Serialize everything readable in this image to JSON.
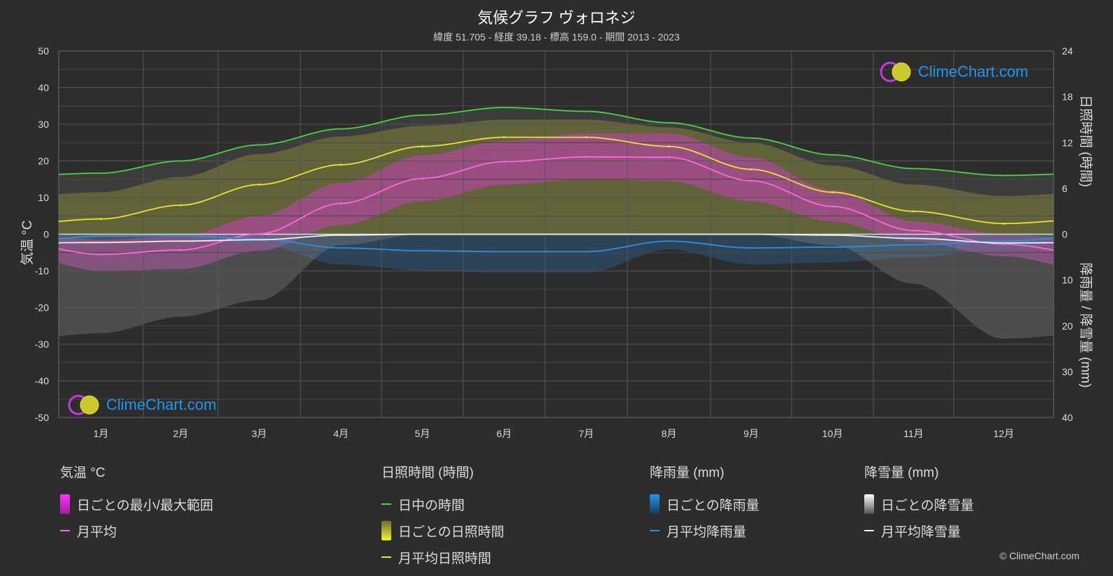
{
  "header": {
    "title": "気候グラフ ヴォロネジ",
    "subtitle": "緯度 51.705 - 経度 39.18 - 標高 159.0 - 期間 2013 - 2023"
  },
  "axes": {
    "left_title": "気温 °C",
    "right_top_title": "日照時間 (時間)",
    "right_bottom_title": "降雨量 / 降雪量 (mm)"
  },
  "legend": {
    "temp": {
      "head": "気温 °C",
      "items": [
        "日ごとの最小/最大範囲",
        "月平均"
      ]
    },
    "sun": {
      "head": "日照時間 (時間)",
      "items": [
        "日中の時間",
        "日ごとの日照時間",
        "月平均日照時間"
      ]
    },
    "rain": {
      "head": "降雨量 (mm)",
      "items": [
        "日ごとの降雨量",
        "月平均降雨量"
      ]
    },
    "snow": {
      "head": "降雪量 (mm)",
      "items": [
        "日ごとの降雪量",
        "月平均降雪量"
      ]
    }
  },
  "logo": {
    "text": "ClimeChart.com"
  },
  "copyright": "© ClimeChart.com",
  "colors": {
    "background": "#2d2d2d",
    "daylight": "#44d644",
    "sunshine_avg": "#e6e632",
    "sunshine_band": "#9a9a28",
    "temp_avg": "#ff66e0",
    "temp_band": "#c640b8",
    "rain_avg": "#2e8fe0",
    "rain_band": "#2a6ea8",
    "snow_avg": "#f0f0f0",
    "snow_band": "#8a8a8a",
    "grid": "#555555"
  },
  "chart_data": {
    "type": "area",
    "categories": [
      "1月",
      "2月",
      "3月",
      "4月",
      "5月",
      "6月",
      "7月",
      "8月",
      "9月",
      "10月",
      "11月",
      "12月"
    ],
    "temperature_axis": {
      "ticks": [
        50,
        40,
        30,
        20,
        10,
        0,
        -10,
        -20,
        -30,
        -40,
        -50
      ],
      "ylim": [
        -50,
        50
      ],
      "unit": "°C"
    },
    "sunshine_axis": {
      "ticks": [
        24,
        18,
        12,
        6,
        0
      ],
      "ylim": [
        0,
        24
      ],
      "unit": "時間"
    },
    "precipitation_axis": {
      "ticks": [
        0,
        10,
        20,
        30,
        40
      ],
      "ylim": [
        0,
        40
      ],
      "unit": "mm",
      "inverted": true
    },
    "grid": true,
    "series": [
      {
        "name": "日中の時間",
        "axis": "sunshine",
        "values": [
          8.0,
          9.6,
          11.7,
          13.8,
          15.6,
          16.6,
          16.1,
          14.6,
          12.6,
          10.4,
          8.6,
          7.7
        ]
      },
      {
        "name": "月平均日照時間",
        "axis": "sunshine",
        "values": [
          2.0,
          3.8,
          6.5,
          9.1,
          11.5,
          12.7,
          12.7,
          11.5,
          8.5,
          5.5,
          3.0,
          1.4
        ]
      },
      {
        "name": "日ごとの日照時間",
        "axis": "sunshine",
        "values": [
          5.5,
          7.5,
          10.5,
          12.8,
          14.2,
          15.0,
          15.0,
          14.0,
          12.0,
          9.0,
          6.5,
          5.0
        ]
      },
      {
        "name": "月平均",
        "axis": "temperature",
        "values": [
          -5.5,
          -4.3,
          0.1,
          8.4,
          15.2,
          19.8,
          21.1,
          21.0,
          14.6,
          7.6,
          1.0,
          -2.7
        ]
      },
      {
        "name": "日ごとの最小/最大範囲",
        "axis": "temperature",
        "min": [
          -10.0,
          -9.5,
          -4.5,
          2.5,
          9.0,
          13.5,
          15.0,
          14.5,
          9.0,
          3.5,
          -2.0,
          -6.0
        ],
        "max": [
          -1.5,
          -0.5,
          5.0,
          14.0,
          21.5,
          25.5,
          27.5,
          27.5,
          21.0,
          12.0,
          3.5,
          0.0
        ]
      },
      {
        "name": "月平均降雨量",
        "axis": "precipitation",
        "values": [
          0.4,
          0.3,
          1.0,
          3.0,
          3.6,
          3.8,
          3.8,
          1.5,
          3.0,
          2.8,
          2.3,
          1.5
        ]
      },
      {
        "name": "月平均降雪量",
        "axis": "precipitation",
        "values": [
          1.8,
          1.5,
          1.2,
          0.2,
          0.0,
          0.0,
          0.0,
          0.0,
          0.0,
          0.2,
          0.9,
          1.9
        ]
      }
    ]
  }
}
